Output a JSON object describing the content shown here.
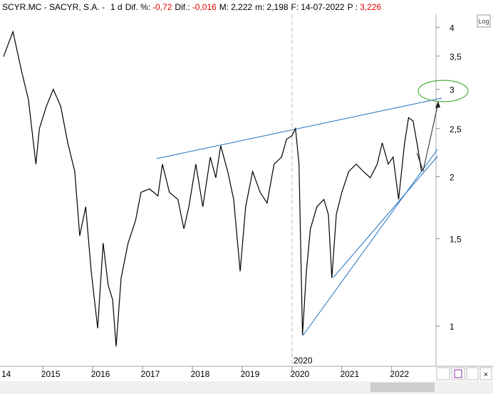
{
  "header": {
    "symbol": "SCYR.MC - SACYR, S.A. -",
    "period": "1 d",
    "items": [
      {
        "label": "Dif. %:",
        "value": "-0,72",
        "negative": true
      },
      {
        "label": "Dif.:",
        "value": "-0,016",
        "negative": true
      },
      {
        "label": "M:",
        "value": "2,222",
        "negative": false
      },
      {
        "label": "m:",
        "value": "2,198",
        "negative": false
      },
      {
        "label": "F:",
        "value": "14-07-2022",
        "negative": false
      },
      {
        "label": "P :",
        "value": "3,226",
        "negative": true
      }
    ]
  },
  "log_button": "Log",
  "chart_data": {
    "type": "line",
    "log_scale": true,
    "grid": false,
    "annotation": "2020",
    "annotation_x": 2020.0,
    "x": [
      2014.21,
      2014.4,
      2014.57,
      2014.71,
      2014.86,
      2014.93,
      2015.07,
      2015.21,
      2015.36,
      2015.5,
      2015.64,
      2015.74,
      2015.86,
      2015.97,
      2016.1,
      2016.21,
      2016.31,
      2016.4,
      2016.47,
      2016.57,
      2016.71,
      2016.86,
      2016.97,
      2017.14,
      2017.31,
      2017.4,
      2017.54,
      2017.71,
      2017.83,
      2017.93,
      2018.07,
      2018.21,
      2018.36,
      2018.47,
      2018.57,
      2018.71,
      2018.83,
      2018.96,
      2019.07,
      2019.21,
      2019.36,
      2019.5,
      2019.64,
      2019.79,
      2019.89,
      2020.0,
      2020.07,
      2020.14,
      2020.21,
      2020.29,
      2020.37,
      2020.5,
      2020.64,
      2020.73,
      2020.8,
      2020.89,
      2021.0,
      2021.14,
      2021.29,
      2021.43,
      2021.57,
      2021.71,
      2021.81,
      2021.93,
      2022.03,
      2022.14,
      2022.26,
      2022.34,
      2022.43,
      2022.53,
      2022.6
    ],
    "series": [
      {
        "name": "SCYR.MC",
        "color": "#000000",
        "values": [
          3.49,
          3.92,
          3.27,
          2.86,
          2.12,
          2.5,
          2.77,
          3.0,
          2.77,
          2.34,
          2.05,
          1.52,
          1.74,
          1.29,
          0.99,
          1.47,
          1.21,
          1.13,
          0.91,
          1.25,
          1.47,
          1.63,
          1.86,
          1.89,
          1.83,
          2.12,
          1.86,
          1.8,
          1.57,
          1.74,
          2.12,
          1.74,
          2.19,
          1.99,
          2.31,
          2.05,
          1.8,
          1.29,
          1.74,
          2.05,
          1.86,
          1.77,
          2.12,
          2.19,
          2.38,
          2.42,
          2.5,
          2.12,
          0.96,
          1.29,
          1.57,
          1.74,
          1.8,
          1.68,
          1.25,
          1.68,
          1.86,
          2.05,
          2.12,
          2.05,
          1.99,
          2.12,
          2.34,
          2.12,
          2.19,
          1.8,
          2.34,
          2.63,
          2.59,
          2.27,
          2.05
        ]
      }
    ],
    "xlim": [
      2014.14,
      2022.89
    ],
    "xticks": [
      {
        "value": 2014,
        "label": "14"
      },
      2015,
      2016,
      2017,
      2018,
      2019,
      2020,
      2021,
      2022
    ],
    "ylim": [
      0.83,
      4.25
    ],
    "yticks": [
      1,
      {
        "value": 1.5,
        "label": "1,5"
      },
      2,
      {
        "value": 2.5,
        "label": "2,5"
      },
      3,
      {
        "value": 3.5,
        "label": "3,5"
      },
      4
    ]
  }
}
